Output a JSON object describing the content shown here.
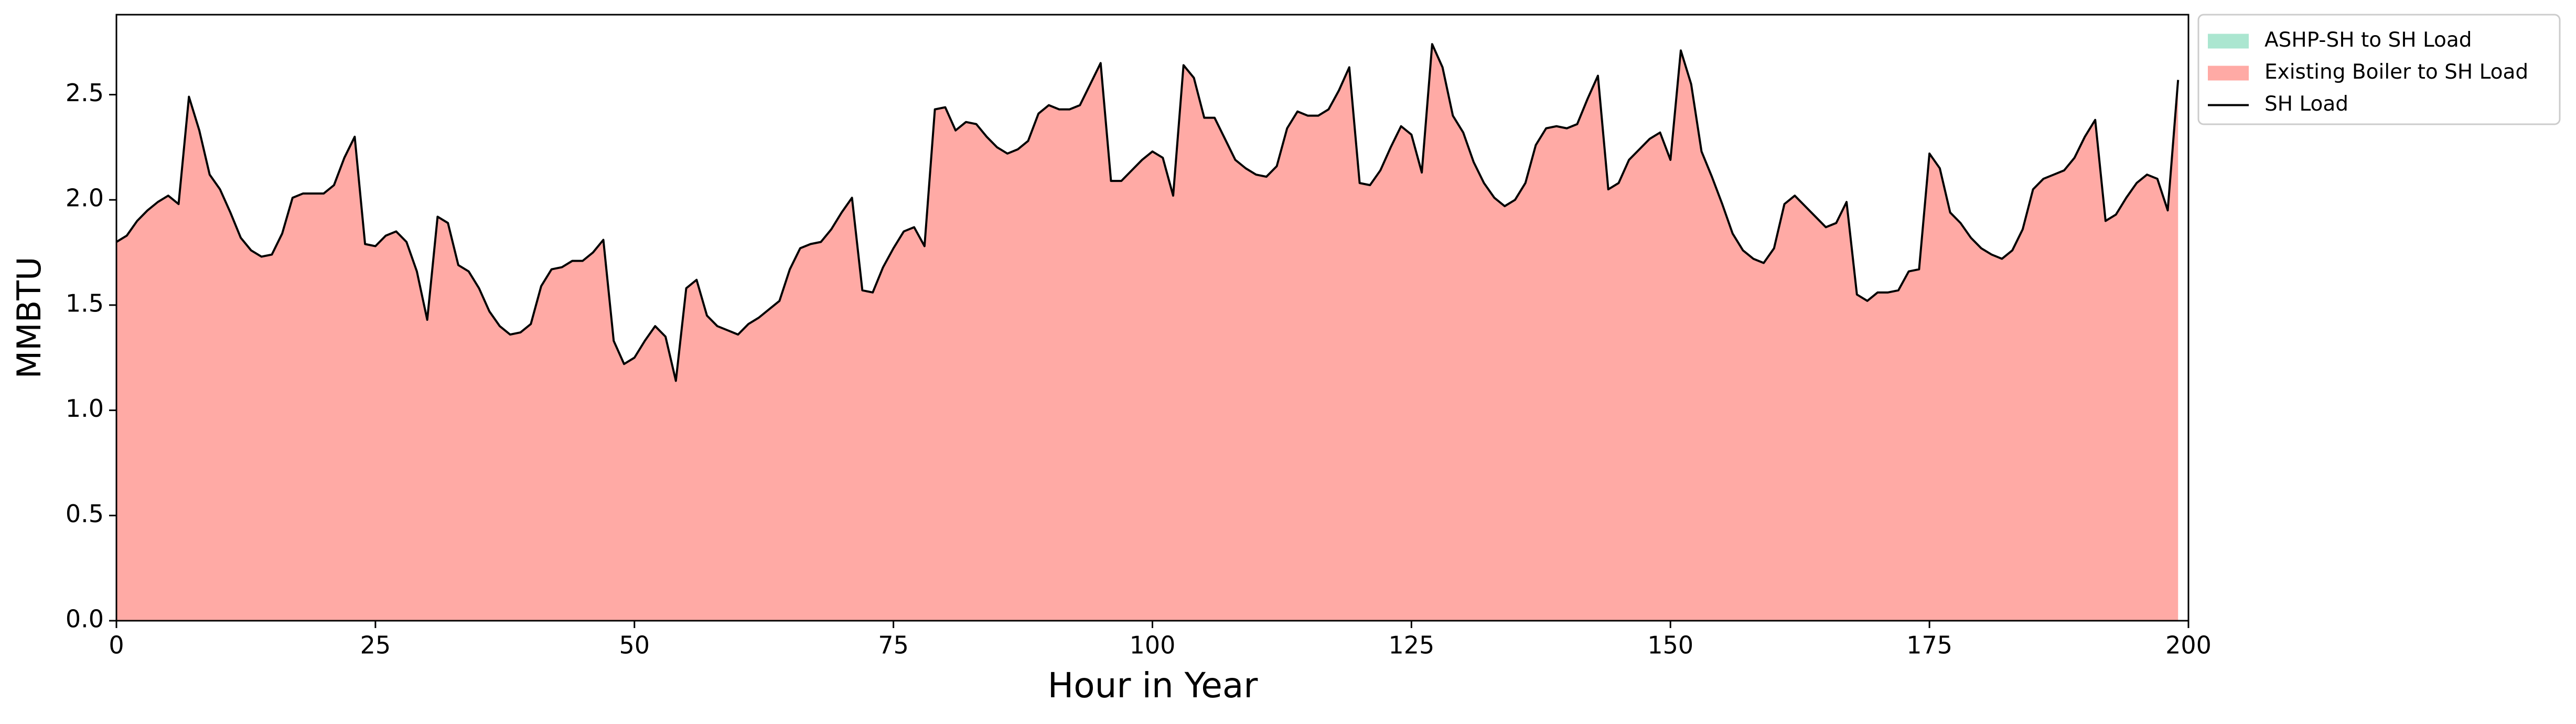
{
  "chart_data": {
    "type": "stacked_area",
    "x_label": "Hour in Year",
    "y_label": "MMBTU",
    "x": [
      0,
      1,
      2,
      3,
      4,
      5,
      6,
      7,
      8,
      9,
      10,
      11,
      12,
      13,
      14,
      15,
      16,
      17,
      18,
      19,
      20,
      21,
      22,
      23,
      24,
      25,
      26,
      27,
      28,
      29,
      30,
      31,
      32,
      33,
      34,
      35,
      36,
      37,
      38,
      39,
      40,
      41,
      42,
      43,
      44,
      45,
      46,
      47,
      48,
      49,
      50,
      51,
      52,
      53,
      54,
      55,
      56,
      57,
      58,
      59,
      60,
      61,
      62,
      63,
      64,
      65,
      66,
      67,
      68,
      69,
      70,
      71,
      72,
      73,
      74,
      75,
      76,
      77,
      78,
      79,
      80,
      81,
      82,
      83,
      84,
      85,
      86,
      87,
      88,
      89,
      90,
      91,
      92,
      93,
      94,
      95,
      96,
      97,
      98,
      99,
      100,
      101,
      102,
      103,
      104,
      105,
      106,
      107,
      108,
      109,
      110,
      111,
      112,
      113,
      114,
      115,
      116,
      117,
      118,
      119,
      120,
      121,
      122,
      123,
      124,
      125,
      126,
      127,
      128,
      129,
      130,
      131,
      132,
      133,
      134,
      135,
      136,
      137,
      138,
      139,
      140,
      141,
      142,
      143,
      144,
      145,
      146,
      147,
      148,
      149,
      150,
      151,
      152,
      153,
      154,
      155,
      156,
      157,
      158,
      159,
      160,
      161,
      162,
      163,
      164,
      165,
      166,
      167,
      168,
      169,
      170,
      171,
      172,
      173,
      174,
      175,
      176,
      177,
      178,
      179,
      180,
      181,
      182,
      183,
      184,
      185,
      186,
      187,
      188,
      189,
      190,
      191,
      192,
      193,
      194,
      195,
      196,
      197,
      198,
      199
    ],
    "series": [
      {
        "name": "ASHP-SH to SH Load",
        "color": "#abe6d0",
        "kind": "area",
        "values": [
          0,
          0,
          0,
          0,
          0,
          0,
          0,
          0,
          0,
          0,
          0,
          0,
          0,
          0,
          0,
          0,
          0,
          0,
          0,
          0,
          0,
          0,
          0,
          0,
          0,
          0,
          0,
          0,
          0,
          0,
          0,
          0,
          0,
          0,
          0,
          0,
          0,
          0,
          0,
          0,
          0,
          0,
          0,
          0,
          0,
          0,
          0,
          0,
          0,
          0,
          0,
          0,
          0,
          0,
          0,
          0,
          0,
          0,
          0,
          0,
          0,
          0,
          0,
          0,
          0,
          0,
          0,
          0,
          0,
          0,
          0,
          0,
          0,
          0,
          0,
          0,
          0,
          0,
          0,
          0,
          0,
          0,
          0,
          0,
          0,
          0,
          0,
          0,
          0,
          0,
          0,
          0,
          0,
          0,
          0,
          0,
          0,
          0,
          0,
          0,
          0,
          0,
          0,
          0,
          0,
          0,
          0,
          0,
          0,
          0,
          0,
          0,
          0,
          0,
          0,
          0,
          0,
          0,
          0,
          0,
          0,
          0,
          0,
          0,
          0,
          0,
          0,
          0,
          0,
          0,
          0,
          0,
          0,
          0,
          0,
          0,
          0,
          0,
          0,
          0,
          0,
          0,
          0,
          0,
          0,
          0,
          0,
          0,
          0,
          0,
          0,
          0,
          0,
          0,
          0,
          0,
          0,
          0,
          0,
          0,
          0,
          0,
          0,
          0,
          0,
          0,
          0,
          0,
          0,
          0,
          0,
          0,
          0,
          0,
          0,
          0,
          0,
          0,
          0,
          0,
          0,
          0,
          0,
          0,
          0,
          0,
          0,
          0,
          0,
          0,
          0,
          0,
          0,
          0,
          0,
          0,
          0,
          0,
          0,
          0
        ]
      },
      {
        "name": "Existing Boiler to SH Load",
        "color": "#ffaaa5",
        "kind": "area",
        "values": [
          1.8,
          1.83,
          1.9,
          1.95,
          1.99,
          2.02,
          1.98,
          2.49,
          2.33,
          2.12,
          2.05,
          1.94,
          1.82,
          1.76,
          1.73,
          1.74,
          1.84,
          2.01,
          2.03,
          2.03,
          2.03,
          2.07,
          2.2,
          2.3,
          1.79,
          1.78,
          1.83,
          1.85,
          1.8,
          1.66,
          1.43,
          1.92,
          1.89,
          1.69,
          1.66,
          1.58,
          1.47,
          1.4,
          1.36,
          1.37,
          1.41,
          1.59,
          1.67,
          1.68,
          1.71,
          1.71,
          1.75,
          1.81,
          1.33,
          1.22,
          1.25,
          1.33,
          1.4,
          1.35,
          1.14,
          1.58,
          1.62,
          1.45,
          1.4,
          1.38,
          1.36,
          1.41,
          1.44,
          1.48,
          1.52,
          1.67,
          1.77,
          1.79,
          1.8,
          1.86,
          1.94,
          2.01,
          1.57,
          1.56,
          1.68,
          1.77,
          1.85,
          1.87,
          1.78,
          2.43,
          2.44,
          2.33,
          2.37,
          2.36,
          2.3,
          2.25,
          2.22,
          2.24,
          2.28,
          2.41,
          2.45,
          2.43,
          2.43,
          2.45,
          2.55,
          2.65,
          2.09,
          2.09,
          2.14,
          2.19,
          2.23,
          2.2,
          2.02,
          2.64,
          2.58,
          2.39,
          2.39,
          2.29,
          2.19,
          2.15,
          2.12,
          2.11,
          2.16,
          2.34,
          2.42,
          2.4,
          2.4,
          2.43,
          2.52,
          2.63,
          2.08,
          2.07,
          2.14,
          2.25,
          2.35,
          2.31,
          2.13,
          2.74,
          2.63,
          2.4,
          2.32,
          2.18,
          2.08,
          2.01,
          1.97,
          2.0,
          2.08,
          2.26,
          2.34,
          2.35,
          2.34,
          2.36,
          2.48,
          2.59,
          2.05,
          2.08,
          2.19,
          2.24,
          2.29,
          2.32,
          2.19,
          2.71,
          2.55,
          2.23,
          2.11,
          1.98,
          1.84,
          1.76,
          1.72,
          1.7,
          1.77,
          1.98,
          2.02,
          1.97,
          1.92,
          1.87,
          1.89,
          1.99,
          1.55,
          1.52,
          1.56,
          1.56,
          1.57,
          1.66,
          1.67,
          2.22,
          2.15,
          1.94,
          1.89,
          1.82,
          1.77,
          1.74,
          1.72,
          1.76,
          1.86,
          2.05,
          2.1,
          2.12,
          2.14,
          2.2,
          2.3,
          2.38,
          1.9,
          1.93,
          2.01,
          2.08,
          2.12,
          2.1,
          1.95,
          2.57
        ]
      },
      {
        "name": "SH Load",
        "color": "#000000",
        "kind": "line",
        "values": [
          1.8,
          1.83,
          1.9,
          1.95,
          1.99,
          2.02,
          1.98,
          2.49,
          2.33,
          2.12,
          2.05,
          1.94,
          1.82,
          1.76,
          1.73,
          1.74,
          1.84,
          2.01,
          2.03,
          2.03,
          2.03,
          2.07,
          2.2,
          2.3,
          1.79,
          1.78,
          1.83,
          1.85,
          1.8,
          1.66,
          1.43,
          1.92,
          1.89,
          1.69,
          1.66,
          1.58,
          1.47,
          1.4,
          1.36,
          1.37,
          1.41,
          1.59,
          1.67,
          1.68,
          1.71,
          1.71,
          1.75,
          1.81,
          1.33,
          1.22,
          1.25,
          1.33,
          1.4,
          1.35,
          1.14,
          1.58,
          1.62,
          1.45,
          1.4,
          1.38,
          1.36,
          1.41,
          1.44,
          1.48,
          1.52,
          1.67,
          1.77,
          1.79,
          1.8,
          1.86,
          1.94,
          2.01,
          1.57,
          1.56,
          1.68,
          1.77,
          1.85,
          1.87,
          1.78,
          2.43,
          2.44,
          2.33,
          2.37,
          2.36,
          2.3,
          2.25,
          2.22,
          2.24,
          2.28,
          2.41,
          2.45,
          2.43,
          2.43,
          2.45,
          2.55,
          2.65,
          2.09,
          2.09,
          2.14,
          2.19,
          2.23,
          2.2,
          2.02,
          2.64,
          2.58,
          2.39,
          2.39,
          2.29,
          2.19,
          2.15,
          2.12,
          2.11,
          2.16,
          2.34,
          2.42,
          2.4,
          2.4,
          2.43,
          2.52,
          2.63,
          2.08,
          2.07,
          2.14,
          2.25,
          2.35,
          2.31,
          2.13,
          2.74,
          2.63,
          2.4,
          2.32,
          2.18,
          2.08,
          2.01,
          1.97,
          2.0,
          2.08,
          2.26,
          2.34,
          2.35,
          2.34,
          2.36,
          2.48,
          2.59,
          2.05,
          2.08,
          2.19,
          2.24,
          2.29,
          2.32,
          2.19,
          2.71,
          2.55,
          2.23,
          2.11,
          1.98,
          1.84,
          1.76,
          1.72,
          1.7,
          1.77,
          1.98,
          2.02,
          1.97,
          1.92,
          1.87,
          1.89,
          1.99,
          1.55,
          1.52,
          1.56,
          1.56,
          1.57,
          1.66,
          1.67,
          2.22,
          2.15,
          1.94,
          1.89,
          1.82,
          1.77,
          1.74,
          1.72,
          1.76,
          1.86,
          2.05,
          2.1,
          2.12,
          2.14,
          2.2,
          2.3,
          2.38,
          1.9,
          1.93,
          2.01,
          2.08,
          2.12,
          2.1,
          1.95,
          2.57
        ]
      }
    ],
    "xlim": [
      0,
      200
    ],
    "xticks": [
      0,
      25,
      50,
      75,
      100,
      125,
      150,
      175,
      200
    ],
    "ylim": [
      0,
      2.88
    ],
    "yticks": [
      {
        "value": 0,
        "label": "0.0"
      },
      0.5,
      {
        "value": 1,
        "label": "1.0"
      },
      1.5,
      {
        "value": 2,
        "label": "2.0"
      },
      2.5
    ],
    "legend": "outside-upper-right",
    "grid": false
  }
}
